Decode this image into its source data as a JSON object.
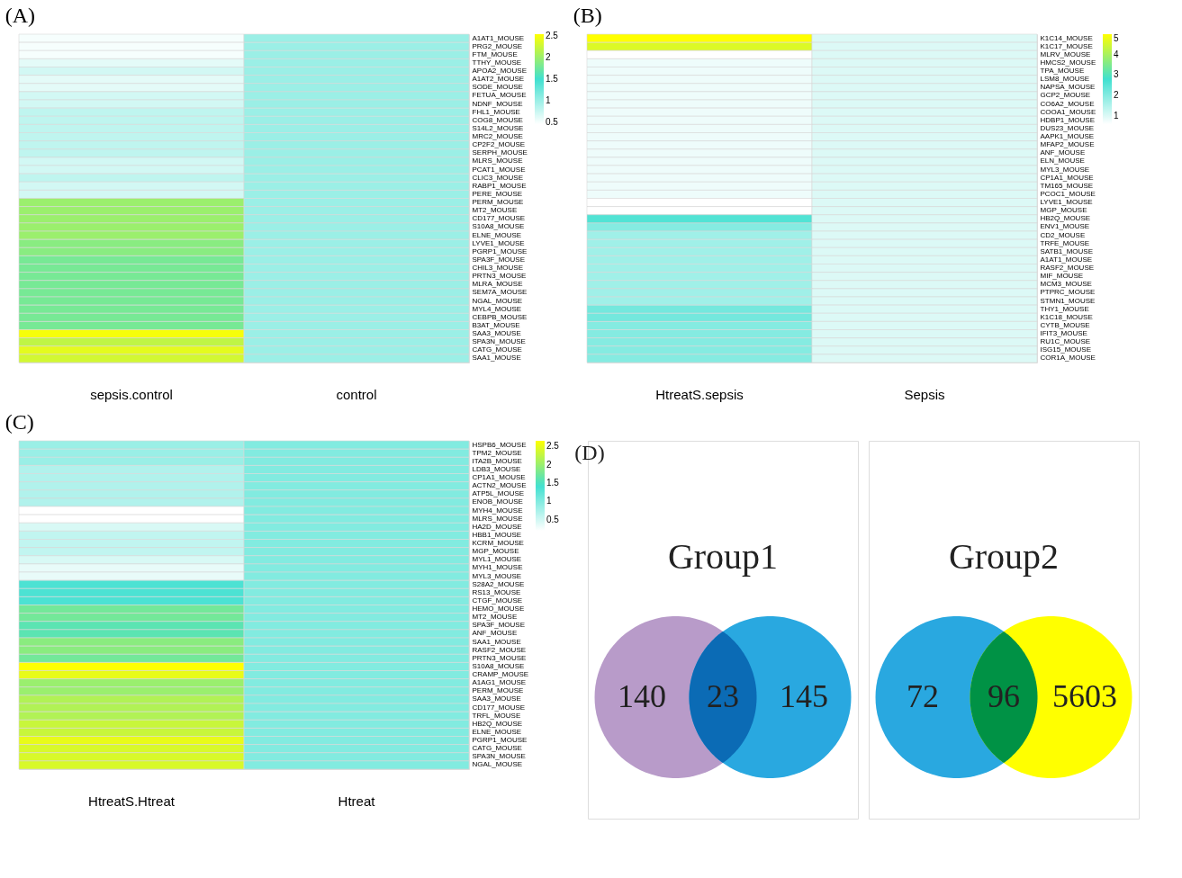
{
  "chart_data": [
    {
      "type": "heatmap",
      "annotations": [
        "(A)"
      ],
      "categories": [
        "sepsis.control",
        "control"
      ],
      "y_categories": [
        "A1AT1_MOUSE",
        "PRG2_MOUSE",
        "FTM_MOUSE",
        "TTHY_MOUSE",
        "APOA2_MOUSE",
        "A1AT2_MOUSE",
        "SODE_MOUSE",
        "FETUA_MOUSE",
        "NDNF_MOUSE",
        "FHL1_MOUSE",
        "COG8_MOUSE",
        "S14L2_MOUSE",
        "MRC2_MOUSE",
        "CP2F2_MOUSE",
        "SERPH_MOUSE",
        "MLRS_MOUSE",
        "PCAT1_MOUSE",
        "CLIC3_MOUSE",
        "RABP1_MOUSE",
        "PERE_MOUSE",
        "PERM_MOUSE",
        "MT2_MOUSE",
        "CD177_MOUSE",
        "S10A8_MOUSE",
        "ELNE_MOUSE",
        "LYVE1_MOUSE",
        "PGRP1_MOUSE",
        "SPA3F_MOUSE",
        "CHIL3_MOUSE",
        "PRTN3_MOUSE",
        "MLRA_MOUSE",
        "SEM7A_MOUSE",
        "NGAL_MOUSE",
        "MYL4_MOUSE",
        "CEBPB_MOUSE",
        "B3AT_MOUSE",
        "SAA3_MOUSE",
        "SPA3N_MOUSE",
        "CATG_MOUSE",
        "SAA1_MOUSE"
      ],
      "cells": [
        [
          0.5,
          1.0
        ],
        [
          0.5,
          1.0
        ],
        [
          0.5,
          1.0
        ],
        [
          0.6,
          1.0
        ],
        [
          0.7,
          1.0
        ],
        [
          0.6,
          1.0
        ],
        [
          0.6,
          1.0
        ],
        [
          0.7,
          1.0
        ],
        [
          0.7,
          1.0
        ],
        [
          0.8,
          1.0
        ],
        [
          0.8,
          1.0
        ],
        [
          0.8,
          1.0
        ],
        [
          0.8,
          1.0
        ],
        [
          0.8,
          1.0
        ],
        [
          0.8,
          1.0
        ],
        [
          0.7,
          1.0
        ],
        [
          0.7,
          1.0
        ],
        [
          0.8,
          1.0
        ],
        [
          0.7,
          1.0
        ],
        [
          0.7,
          1.0
        ],
        [
          2.0,
          1.0
        ],
        [
          2.0,
          1.0
        ],
        [
          2.0,
          1.0
        ],
        [
          2.0,
          1.0
        ],
        [
          2.0,
          1.0
        ],
        [
          1.9,
          1.0
        ],
        [
          1.9,
          1.0
        ],
        [
          1.8,
          1.0
        ],
        [
          1.8,
          1.0
        ],
        [
          1.8,
          1.0
        ],
        [
          1.8,
          1.0
        ],
        [
          1.8,
          1.0
        ],
        [
          1.8,
          1.0
        ],
        [
          1.8,
          1.0
        ],
        [
          1.8,
          1.0
        ],
        [
          1.8,
          1.0
        ],
        [
          2.5,
          1.0
        ],
        [
          2.2,
          1.0
        ],
        [
          2.4,
          1.0
        ],
        [
          2.3,
          1.0
        ]
      ],
      "clim": [
        0.45,
        2.55
      ],
      "cticks": [
        0.5,
        1,
        1.5,
        2,
        2.5
      ],
      "colors": [
        "#ffffff",
        "#40e0d0",
        "#ffff00"
      ]
    },
    {
      "type": "heatmap",
      "annotations": [
        "(B)"
      ],
      "categories": [
        "HtreatS.sepsis",
        "Sepsis"
      ],
      "y_categories": [
        "K1C14_MOUSE",
        "K1C17_MOUSE",
        "MLRV_MOUSE",
        "HMCS2_MOUSE",
        "TPA_MOUSE",
        "LSM8_MOUSE",
        "NAPSA_MOUSE",
        "GCP2_MOUSE",
        "CO6A2_MOUSE",
        "COOA1_MOUSE",
        "HDBP1_MOUSE",
        "DUS23_MOUSE",
        "AAPK1_MOUSE",
        "MFAP2_MOUSE",
        "ANF_MOUSE",
        "ELN_MOUSE",
        "MYL3_MOUSE",
        "CP1A1_MOUSE",
        "TM165_MOUSE",
        "PCOC1_MOUSE",
        "LYVE1_MOUSE",
        "MGP_MOUSE",
        "HB2Q_MOUSE",
        "ENV1_MOUSE",
        "CD2_MOUSE",
        "TRFE_MOUSE",
        "SATB1_MOUSE",
        "A1AT1_MOUSE",
        "RASF2_MOUSE",
        "MIF_MOUSE",
        "MCM3_MOUSE",
        "PTPRC_MOUSE",
        "STMN1_MOUSE",
        "THY1_MOUSE",
        "K1C18_MOUSE",
        "CYTB_MOUSE",
        "IFIT3_MOUSE",
        "RU1C_MOUSE",
        "ISG15_MOUSE",
        "COR1A_MOUSE"
      ],
      "cells": [
        [
          5.0,
          1.0
        ],
        [
          4.6,
          1.0
        ],
        [
          0.6,
          1.0
        ],
        [
          0.8,
          1.0
        ],
        [
          0.8,
          1.0
        ],
        [
          0.8,
          1.0
        ],
        [
          0.8,
          1.0
        ],
        [
          0.8,
          1.0
        ],
        [
          0.8,
          1.0
        ],
        [
          0.8,
          1.0
        ],
        [
          0.8,
          1.0
        ],
        [
          0.8,
          1.0
        ],
        [
          0.8,
          1.0
        ],
        [
          0.8,
          1.0
        ],
        [
          0.8,
          1.0
        ],
        [
          0.8,
          1.0
        ],
        [
          0.8,
          1.0
        ],
        [
          0.8,
          1.0
        ],
        [
          0.8,
          1.0
        ],
        [
          0.8,
          1.0
        ],
        [
          0.6,
          1.0
        ],
        [
          0.6,
          1.0
        ],
        [
          2.6,
          1.0
        ],
        [
          2.0,
          1.0
        ],
        [
          1.7,
          1.0
        ],
        [
          1.7,
          1.0
        ],
        [
          1.7,
          1.0
        ],
        [
          1.7,
          1.0
        ],
        [
          1.7,
          1.0
        ],
        [
          1.7,
          1.0
        ],
        [
          1.7,
          1.0
        ],
        [
          1.7,
          1.0
        ],
        [
          1.7,
          1.0
        ],
        [
          2.2,
          1.0
        ],
        [
          2.2,
          1.0
        ],
        [
          2.0,
          1.0
        ],
        [
          2.0,
          1.0
        ],
        [
          2.0,
          1.0
        ],
        [
          2.0,
          1.0
        ],
        [
          2.0,
          1.0
        ]
      ],
      "clim": [
        0.6,
        5
      ],
      "cticks": [
        1,
        2,
        3,
        4,
        5
      ],
      "colors": [
        "#ffffff",
        "#40e0d0",
        "#ffff00"
      ]
    },
    {
      "type": "heatmap",
      "annotations": [
        "(C)"
      ],
      "categories": [
        "HtreatS.Htreat",
        "Htreat"
      ],
      "y_categories": [
        "HSPB6_MOUSE",
        "TPM2_MOUSE",
        "ITA2B_MOUSE",
        "LDB3_MOUSE",
        "CP1A1_MOUSE",
        "ACTN2_MOUSE",
        "ATP5L_MOUSE",
        "ENOB_MOUSE",
        "MYH4_MOUSE",
        "MLRS_MOUSE",
        "HA2D_MOUSE",
        "HBB1_MOUSE",
        "KCRM_MOUSE",
        "MGP_MOUSE",
        "MYL1_MOUSE",
        "MYH1_MOUSE",
        "MYL3_MOUSE",
        "S28A2_MOUSE",
        "RS13_MOUSE",
        "CTGF_MOUSE",
        "HEMO_MOUSE",
        "MT2_MOUSE",
        "SPA3F_MOUSE",
        "ANF_MOUSE",
        "SAA1_MOUSE",
        "RASF2_MOUSE",
        "PRTN3_MOUSE",
        "S10A8_MOUSE",
        "CRAMP_MOUSE",
        "A1AG1_MOUSE",
        "PERM_MOUSE",
        "SAA3_MOUSE",
        "CD177_MOUSE",
        "TRFL_MOUSE",
        "HB2Q_MOUSE",
        "ELNE_MOUSE",
        "PGRP1_MOUSE",
        "CATG_MOUSE",
        "SPA3N_MOUSE",
        "NGAL_MOUSE"
      ],
      "cells": [
        [
          0.85,
          1.0
        ],
        [
          0.85,
          1.0
        ],
        [
          0.85,
          1.0
        ],
        [
          0.7,
          1.0
        ],
        [
          0.7,
          1.0
        ],
        [
          0.7,
          1.0
        ],
        [
          0.7,
          1.0
        ],
        [
          0.7,
          1.0
        ],
        [
          0.2,
          1.0
        ],
        [
          0.2,
          1.0
        ],
        [
          0.45,
          1.0
        ],
        [
          0.6,
          1.0
        ],
        [
          0.6,
          1.0
        ],
        [
          0.6,
          1.0
        ],
        [
          0.45,
          1.0
        ],
        [
          0.35,
          1.0
        ],
        [
          0.35,
          1.0
        ],
        [
          1.35,
          1.0
        ],
        [
          1.35,
          1.0
        ],
        [
          1.35,
          1.0
        ],
        [
          1.75,
          1.0
        ],
        [
          1.75,
          1.0
        ],
        [
          1.6,
          1.0
        ],
        [
          1.6,
          1.0
        ],
        [
          1.9,
          1.0
        ],
        [
          1.9,
          1.0
        ],
        [
          1.75,
          1.0
        ],
        [
          2.65,
          1.0
        ],
        [
          2.5,
          1.0
        ],
        [
          2.0,
          1.0
        ],
        [
          2.0,
          1.0
        ],
        [
          2.15,
          1.0
        ],
        [
          2.15,
          1.0
        ],
        [
          2.15,
          1.0
        ],
        [
          2.3,
          1.0
        ],
        [
          2.3,
          1.0
        ],
        [
          2.5,
          1.0
        ],
        [
          2.4,
          1.0
        ],
        [
          2.4,
          1.0
        ],
        [
          2.4,
          1.0
        ]
      ],
      "clim": [
        0.2,
        2.65
      ],
      "cticks": [
        0.5,
        1,
        1.5,
        2,
        2.5
      ],
      "colors": [
        "#ffffff",
        "#40e0d0",
        "#ffff00"
      ]
    },
    {
      "type": "other",
      "annotations": [
        "(D)"
      ],
      "title": "Group1",
      "data_labels": true,
      "values": [
        140,
        23,
        145
      ],
      "colors": [
        "#b89bc9",
        "#29a8e0",
        "#0b6bb5"
      ]
    },
    {
      "type": "other",
      "title": "Group2",
      "data_labels": true,
      "values": [
        72,
        96,
        5603
      ],
      "colors": [
        "#29a8e0",
        "#ffff00",
        "#009245"
      ]
    }
  ]
}
